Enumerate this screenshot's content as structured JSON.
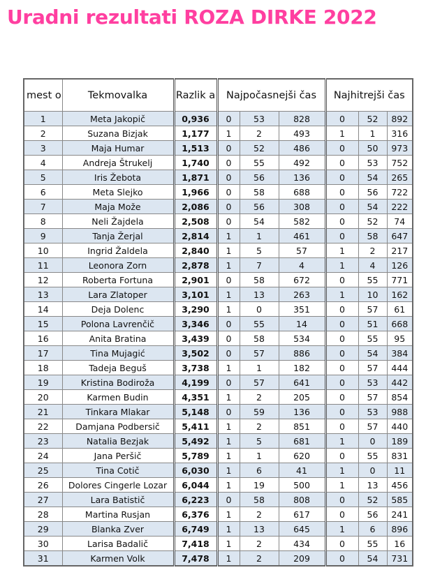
{
  "title": "Uradni rezultati ROZA DIRKE 2022",
  "headers": {
    "place": "mest o",
    "name": "Tekmovalka",
    "diff": "Razlik a",
    "slowest": "Najpočasnejši čas",
    "fastest": "Najhitrejši čas"
  },
  "colors": {
    "title": "#ff3fa0",
    "row_alt": "#dce6f1"
  },
  "rows": [
    [
      "1",
      "Meta Jakopič",
      "0,936",
      "0",
      "53",
      "828",
      "0",
      "52",
      "892"
    ],
    [
      "2",
      "Suzana Bizjak",
      "1,177",
      "1",
      "2",
      "493",
      "1",
      "1",
      "316"
    ],
    [
      "3",
      "Maja Humar",
      "1,513",
      "0",
      "52",
      "486",
      "0",
      "50",
      "973"
    ],
    [
      "4",
      "Andreja Štrukelj",
      "1,740",
      "0",
      "55",
      "492",
      "0",
      "53",
      "752"
    ],
    [
      "5",
      "Iris Žebota",
      "1,871",
      "0",
      "56",
      "136",
      "0",
      "54",
      "265"
    ],
    [
      "6",
      "Meta Slejko",
      "1,966",
      "0",
      "58",
      "688",
      "0",
      "56",
      "722"
    ],
    [
      "7",
      "Maja Može",
      "2,086",
      "0",
      "56",
      "308",
      "0",
      "54",
      "222"
    ],
    [
      "8",
      "Neli Žajdela",
      "2,508",
      "0",
      "54",
      "582",
      "0",
      "52",
      "74"
    ],
    [
      "9",
      "Tanja Žerjal",
      "2,814",
      "1",
      "1",
      "461",
      "0",
      "58",
      "647"
    ],
    [
      "10",
      "Ingrid Žaldela",
      "2,840",
      "1",
      "5",
      "57",
      "1",
      "2",
      "217"
    ],
    [
      "11",
      "Leonora Zorn",
      "2,878",
      "1",
      "7",
      "4",
      "1",
      "4",
      "126"
    ],
    [
      "12",
      "Roberta Fortuna",
      "2,901",
      "0",
      "58",
      "672",
      "0",
      "55",
      "771"
    ],
    [
      "13",
      "Lara Zlatoper",
      "3,101",
      "1",
      "13",
      "263",
      "1",
      "10",
      "162"
    ],
    [
      "14",
      "Deja Dolenc",
      "3,290",
      "1",
      "0",
      "351",
      "0",
      "57",
      "61"
    ],
    [
      "15",
      "Polona Lavrenčič",
      "3,346",
      "0",
      "55",
      "14",
      "0",
      "51",
      "668"
    ],
    [
      "16",
      "Anita Bratina",
      "3,439",
      "0",
      "58",
      "534",
      "0",
      "55",
      "95"
    ],
    [
      "17",
      "Tina Mujagić",
      "3,502",
      "0",
      "57",
      "886",
      "0",
      "54",
      "384"
    ],
    [
      "18",
      "Tadeja Beguš",
      "3,738",
      "1",
      "1",
      "182",
      "0",
      "57",
      "444"
    ],
    [
      "19",
      "Kristina Bodiroža",
      "4,199",
      "0",
      "57",
      "641",
      "0",
      "53",
      "442"
    ],
    [
      "20",
      "Karmen Budin",
      "4,351",
      "1",
      "2",
      "205",
      "0",
      "57",
      "854"
    ],
    [
      "21",
      "Tinkara Mlakar",
      "5,148",
      "0",
      "59",
      "136",
      "0",
      "53",
      "988"
    ],
    [
      "22",
      "Damjana Podbersič",
      "5,411",
      "1",
      "2",
      "851",
      "0",
      "57",
      "440"
    ],
    [
      "23",
      "Natalia Bezjak",
      "5,492",
      "1",
      "5",
      "681",
      "1",
      "0",
      "189"
    ],
    [
      "24",
      "Jana Peršič",
      "5,789",
      "1",
      "1",
      "620",
      "0",
      "55",
      "831"
    ],
    [
      "25",
      "Tina Cotič",
      "6,030",
      "1",
      "6",
      "41",
      "1",
      "0",
      "11"
    ],
    [
      "26",
      "Dolores Cingerle Lozar",
      "6,044",
      "1",
      "19",
      "500",
      "1",
      "13",
      "456"
    ],
    [
      "27",
      "Lara Batistič",
      "6,223",
      "0",
      "58",
      "808",
      "0",
      "52",
      "585"
    ],
    [
      "28",
      "Martina Rusjan",
      "6,376",
      "1",
      "2",
      "617",
      "0",
      "56",
      "241"
    ],
    [
      "29",
      "Blanka Zver",
      "6,749",
      "1",
      "13",
      "645",
      "1",
      "6",
      "896"
    ],
    [
      "30",
      "Larisa Badalič",
      "7,418",
      "1",
      "2",
      "434",
      "0",
      "55",
      "16"
    ],
    [
      "31",
      "Karmen Volk",
      "7,478",
      "1",
      "2",
      "209",
      "0",
      "54",
      "731"
    ]
  ]
}
